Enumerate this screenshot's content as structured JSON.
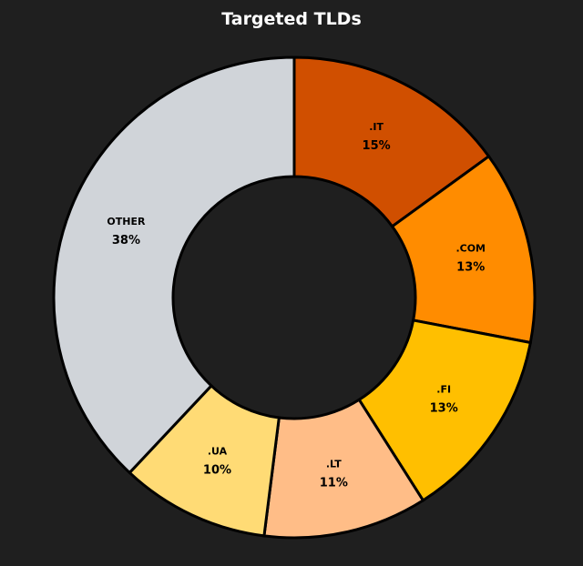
{
  "chart_data": {
    "type": "pie",
    "title": "Targeted TLDs",
    "donut": true,
    "legend": "none",
    "series": [
      {
        "values": [
          15,
          13,
          13,
          11,
          10,
          38
        ],
        "categories": [
          ".IT",
          ".COM",
          ".FI",
          ".LT",
          ".UA",
          "OTHER"
        ]
      }
    ],
    "categories": [
      ".IT",
      ".COM",
      ".FI",
      ".LT",
      ".UA",
      "OTHER"
    ],
    "values": [
      15,
      13,
      13,
      11,
      10,
      38
    ],
    "labels": [
      "15%",
      "13%",
      "13%",
      "11%",
      "10%",
      "38%"
    ],
    "colors": [
      "#d04f00",
      "#ff8c00",
      "#ffbf00",
      "#ffbd87",
      "#ffdb75",
      "#d0d4d9"
    ],
    "background": "#1f1f1f",
    "border_color": "#000000"
  }
}
